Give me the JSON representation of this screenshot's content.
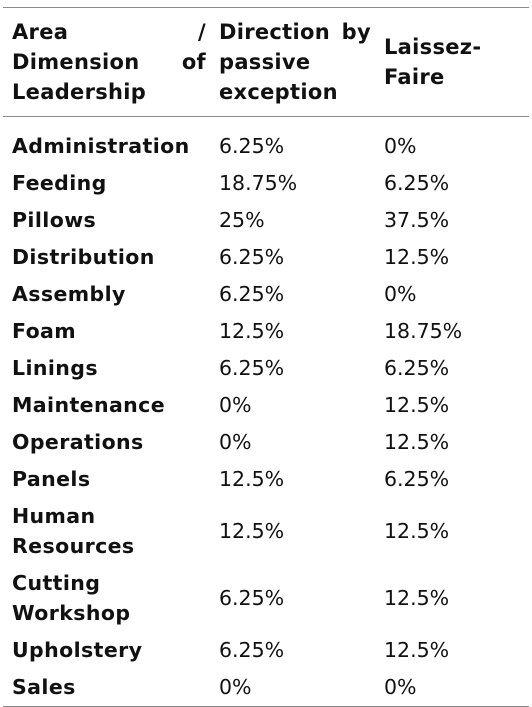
{
  "table": {
    "headers": {
      "area": "Area / Dimension of Leadership",
      "direction": "Direction by passive exception",
      "laissez_faire": "Laissez-Faire"
    },
    "rows": [
      {
        "area": "Administration",
        "direction": "6.25%",
        "laissez_faire": "0%"
      },
      {
        "area": "Feeding",
        "direction": "18.75%",
        "laissez_faire": "6.25%"
      },
      {
        "area": "Pillows",
        "direction": "25%",
        "laissez_faire": "37.5%"
      },
      {
        "area": "Distribution",
        "direction": "6.25%",
        "laissez_faire": "12.5%"
      },
      {
        "area": "Assembly",
        "direction": "6.25%",
        "laissez_faire": "0%"
      },
      {
        "area": "Foam",
        "direction": "12.5%",
        "laissez_faire": "18.75%"
      },
      {
        "area": "Linings",
        "direction": "6.25%",
        "laissez_faire": "6.25%"
      },
      {
        "area": "Maintenance",
        "direction": "0%",
        "laissez_faire": "12.5%"
      },
      {
        "area": "Operations",
        "direction": "0%",
        "laissez_faire": "12.5%"
      },
      {
        "area": "Panels",
        "direction": "12.5%",
        "laissez_faire": "6.25%"
      },
      {
        "area": "Human Resources",
        "direction": "12.5%",
        "laissez_faire": "12.5%"
      },
      {
        "area": "Cutting Workshop",
        "direction": "6.25%",
        "laissez_faire": "12.5%"
      },
      {
        "area": "Upholstery",
        "direction": "6.25%",
        "laissez_faire": "12.5%"
      },
      {
        "area": "Sales",
        "direction": "0%",
        "laissez_faire": "0%"
      }
    ]
  }
}
